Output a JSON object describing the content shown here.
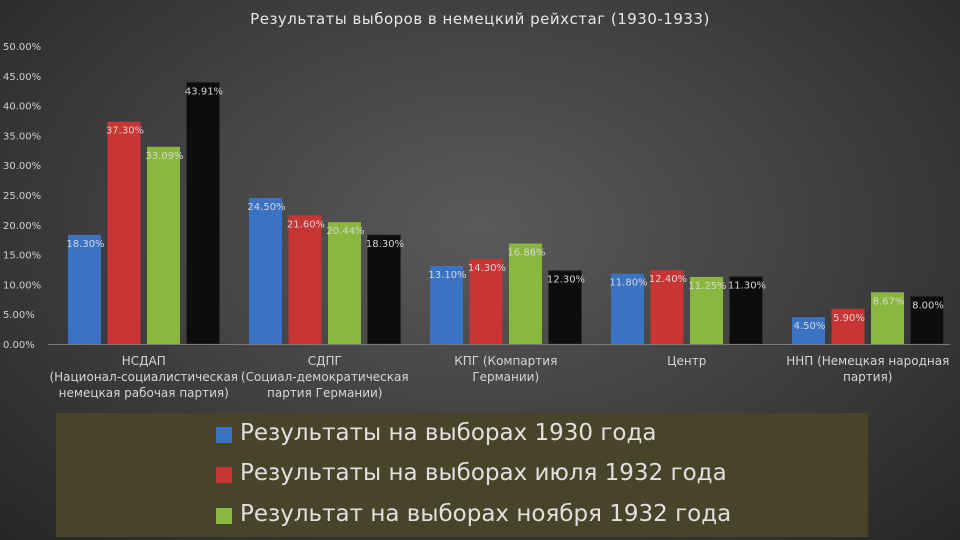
{
  "chart_data": {
    "type": "bar",
    "title": "Результаты выборов в немецкий рейхстаг (1930-1933)",
    "categories": [
      "НСДАП (Национал-социалистическая немецкая рабочая партия)",
      "СДПГ (Социал-демократическая партия Германии)",
      "КПГ (Компартия Германии)",
      "Центр",
      "ННП (Немецкая народная партия)"
    ],
    "series": [
      {
        "name": "Результаты на выборах 1930 года",
        "color": "#3a73c4",
        "values": [
          18.3,
          24.5,
          13.1,
          11.8,
          4.5
        ],
        "labels": [
          "18.30%",
          "24.50%",
          "13.10%",
          "11.80%",
          "4.50%"
        ]
      },
      {
        "name": "Результаты на выборах июля 1932 года",
        "color": "#c93434",
        "values": [
          37.3,
          21.6,
          14.3,
          12.4,
          5.9
        ],
        "labels": [
          "37.30%",
          "21.60%",
          "14.30%",
          "12.40%",
          "5.90%"
        ]
      },
      {
        "name": "Результат на выборах ноября 1932 года",
        "color": "#8ab83e",
        "values": [
          33.09,
          20.44,
          16.86,
          11.25,
          8.67
        ],
        "labels": [
          "33.09%",
          "20.44%",
          "16.86%",
          "11.25%",
          "8.67%"
        ]
      },
      {
        "name": "",
        "color": "#0d0d0d",
        "values": [
          43.91,
          18.3,
          12.3,
          11.3,
          8.0
        ],
        "labels": [
          "43.91%",
          "18.30%",
          "12.30%",
          "11.30%",
          "8.00%"
        ]
      }
    ],
    "yticks": [
      "0.00%",
      "5.00%",
      "10.00%",
      "15.00%",
      "20.00%",
      "25.00%",
      "30.00%",
      "35.00%",
      "40.00%",
      "45.00%",
      "50.00%"
    ],
    "ylim": [
      0,
      50
    ],
    "grid": false,
    "legend_position": "bottom"
  }
}
